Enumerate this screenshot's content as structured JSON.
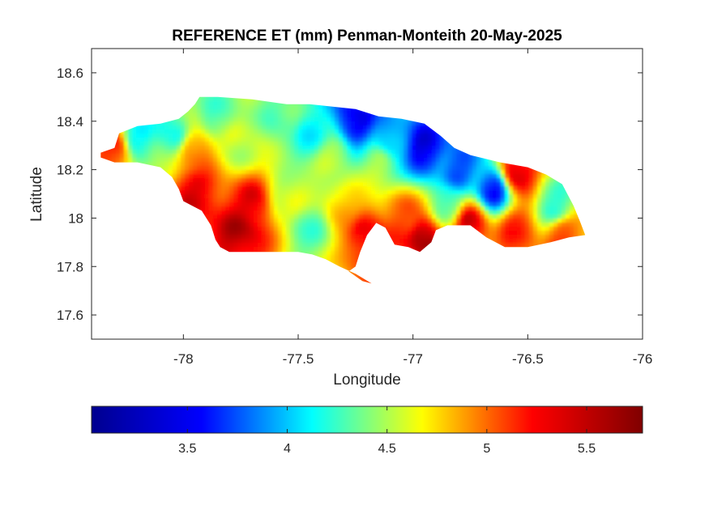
{
  "title": "REFERENCE ET (mm) Penman-Monteith 20-May-2025",
  "map": {
    "xlabel": "Longitude",
    "ylabel": "Latitude",
    "xlim": [
      -78.4,
      -76
    ],
    "ylim": [
      17.5,
      18.7
    ],
    "xticks": [
      "-78",
      "-77.5",
      "-77",
      "-76.5",
      "-76"
    ],
    "xtick_values": [
      -78,
      -77.5,
      -77,
      -76.5,
      -76
    ],
    "yticks": [
      "18.6",
      "18.4",
      "18.2",
      "18",
      "17.8",
      "17.6"
    ],
    "ytick_values": [
      18.6,
      18.4,
      18.2,
      18.0,
      17.8,
      17.6
    ],
    "colormap": "jet"
  },
  "colorbar": {
    "range": [
      3.02,
      5.78
    ],
    "ticks": [
      "3.5",
      "4",
      "4.5",
      "5",
      "5.5"
    ],
    "tick_values": [
      3.5,
      4.0,
      4.5,
      5.0,
      5.5
    ],
    "colors": [
      "#00008f",
      "#0000ff",
      "#00ffff",
      "#ffff00",
      "#ff0000",
      "#800000"
    ]
  },
  "chart_data": {
    "type": "heatmap",
    "title": "REFERENCE ET (mm) Penman-Monteith 20-May-2025",
    "xlabel": "Longitude",
    "ylabel": "Latitude",
    "xlim": [
      -78.4,
      -76
    ],
    "ylim": [
      17.5,
      18.7
    ],
    "value_range": [
      3.02,
      5.78
    ],
    "points": [
      {
        "lon": -78.3,
        "lat": 18.28,
        "v": 5.3
      },
      {
        "lon": -78.2,
        "lat": 18.33,
        "v": 4.1
      },
      {
        "lon": -78.05,
        "lat": 18.35,
        "v": 4.1
      },
      {
        "lon": -77.95,
        "lat": 18.28,
        "v": 5.1
      },
      {
        "lon": -77.85,
        "lat": 18.42,
        "v": 4.3
      },
      {
        "lon": -77.75,
        "lat": 18.3,
        "v": 4.6
      },
      {
        "lon": -77.55,
        "lat": 18.4,
        "v": 4.3
      },
      {
        "lon": -77.45,
        "lat": 18.35,
        "v": 4.1
      },
      {
        "lon": -77.25,
        "lat": 18.4,
        "v": 3.3
      },
      {
        "lon": -77.1,
        "lat": 18.33,
        "v": 3.8
      },
      {
        "lon": -76.95,
        "lat": 18.28,
        "v": 3.3
      },
      {
        "lon": -76.8,
        "lat": 18.2,
        "v": 3.6
      },
      {
        "lon": -76.65,
        "lat": 18.12,
        "v": 3.4
      },
      {
        "lon": -76.55,
        "lat": 18.19,
        "v": 5.6
      },
      {
        "lon": -76.38,
        "lat": 18.05,
        "v": 4.2
      },
      {
        "lon": -76.35,
        "lat": 17.93,
        "v": 5.2
      },
      {
        "lon": -77.95,
        "lat": 18.1,
        "v": 5.5
      },
      {
        "lon": -77.7,
        "lat": 18.05,
        "v": 5.5
      },
      {
        "lon": -77.75,
        "lat": 17.93,
        "v": 5.6
      },
      {
        "lon": -77.55,
        "lat": 18.1,
        "v": 4.6
      },
      {
        "lon": -77.45,
        "lat": 17.95,
        "v": 4.3
      },
      {
        "lon": -77.3,
        "lat": 18.05,
        "v": 4.9
      },
      {
        "lon": -77.2,
        "lat": 17.93,
        "v": 5.5
      },
      {
        "lon": -77.05,
        "lat": 18.0,
        "v": 5.2
      },
      {
        "lon": -76.95,
        "lat": 17.92,
        "v": 5.7
      },
      {
        "lon": -76.85,
        "lat": 18.05,
        "v": 4.3
      },
      {
        "lon": -76.75,
        "lat": 17.98,
        "v": 5.5
      },
      {
        "lon": -76.55,
        "lat": 17.95,
        "v": 5.3
      },
      {
        "lon": -77.15,
        "lat": 18.22,
        "v": 4.5
      },
      {
        "lon": -77.35,
        "lat": 18.25,
        "v": 4.5
      }
    ]
  }
}
